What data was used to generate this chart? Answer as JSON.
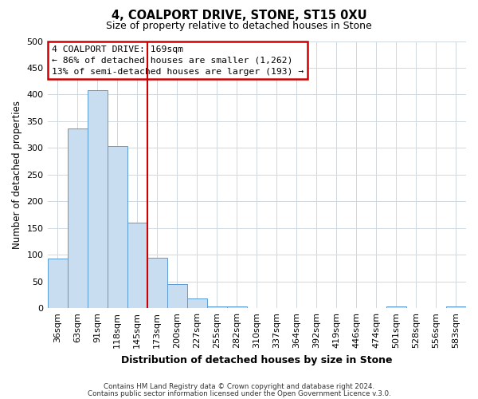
{
  "title": "4, COALPORT DRIVE, STONE, ST15 0XU",
  "subtitle": "Size of property relative to detached houses in Stone",
  "xlabel": "Distribution of detached houses by size in Stone",
  "ylabel": "Number of detached properties",
  "bin_labels": [
    "36sqm",
    "63sqm",
    "91sqm",
    "118sqm",
    "145sqm",
    "173sqm",
    "200sqm",
    "227sqm",
    "255sqm",
    "282sqm",
    "310sqm",
    "337sqm",
    "364sqm",
    "392sqm",
    "419sqm",
    "446sqm",
    "474sqm",
    "501sqm",
    "528sqm",
    "556sqm",
    "583sqm"
  ],
  "bar_heights": [
    93,
    336,
    408,
    304,
    160,
    95,
    45,
    18,
    4,
    4,
    0,
    0,
    0,
    0,
    0,
    0,
    0,
    3,
    0,
    0,
    3
  ],
  "bar_color": "#c8ddf0",
  "bar_edge_color": "#5b9bd5",
  "vline_x_idx": 5,
  "vline_color": "#cc0000",
  "annotation_title": "4 COALPORT DRIVE: 169sqm",
  "annotation_line1": "← 86% of detached houses are smaller (1,262)",
  "annotation_line2": "13% of semi-detached houses are larger (193) →",
  "annotation_box_color": "white",
  "annotation_box_edge_color": "#cc0000",
  "ylim": [
    0,
    500
  ],
  "yticks": [
    0,
    50,
    100,
    150,
    200,
    250,
    300,
    350,
    400,
    450,
    500
  ],
  "footer1": "Contains HM Land Registry data © Crown copyright and database right 2024.",
  "footer2": "Contains public sector information licensed under the Open Government Licence v.3.0.",
  "plot_background": "white",
  "grid_color": "#d0d8e0",
  "title_fontsize": 10.5,
  "subtitle_fontsize": 9
}
